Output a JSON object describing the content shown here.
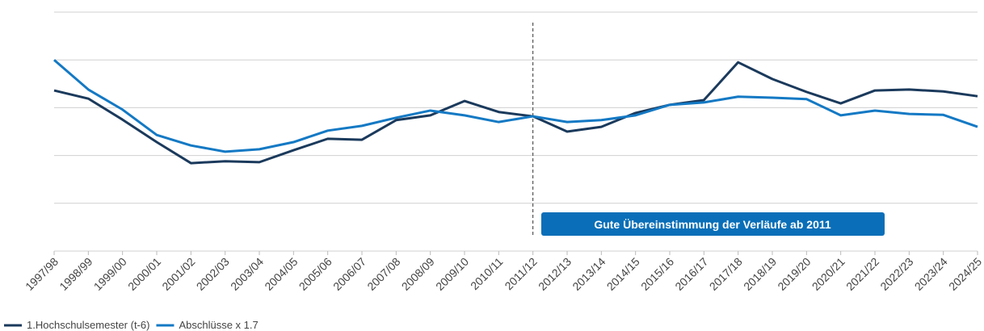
{
  "chart_data": {
    "type": "line",
    "categories": [
      "1997/98",
      "1998/99",
      "1999/00",
      "2000/01",
      "2001/02",
      "2002/03",
      "2003/04",
      "2004/05",
      "2005/06",
      "2006/07",
      "2007/08",
      "2008/09",
      "2009/10",
      "2010/11",
      "2011/12",
      "2012/13",
      "2013/14",
      "2014/15",
      "2015/16",
      "2016/17",
      "2017/18",
      "2018/19",
      "2019/20",
      "2020/21",
      "2021/22",
      "2022/23",
      "2023/24",
      "2024/25"
    ],
    "series": [
      {
        "name": "1.Hochschulsemester (t-6)",
        "color": "#1b3a5c",
        "values": [
          3.36,
          3.19,
          2.75,
          2.28,
          1.84,
          1.88,
          1.86,
          2.11,
          2.35,
          2.33,
          2.74,
          2.84,
          3.14,
          2.91,
          2.82,
          2.5,
          2.6,
          2.89,
          3.06,
          3.16,
          3.95,
          3.6,
          3.33,
          3.09,
          3.36,
          3.38,
          3.34,
          3.24
        ]
      },
      {
        "name": "Abschlüsse x 1.7",
        "color": "#1479c4",
        "values": [
          4.0,
          3.38,
          2.96,
          2.43,
          2.21,
          2.08,
          2.13,
          2.28,
          2.52,
          2.62,
          2.79,
          2.94,
          2.84,
          2.7,
          2.82,
          2.7,
          2.74,
          2.84,
          3.06,
          3.11,
          3.23,
          3.21,
          3.18,
          2.84,
          2.94,
          2.87,
          2.85,
          2.6
        ]
      }
    ],
    "ylim": [
      0,
      5
    ],
    "yticks": [
      1,
      2,
      3,
      4,
      5
    ],
    "grid": true,
    "legend": "bottom-left",
    "annotation": {
      "text": "Gute Übereinstimmung der Verläufe ab 2011",
      "x": "2011/12",
      "color": "#0a6fb8"
    }
  }
}
